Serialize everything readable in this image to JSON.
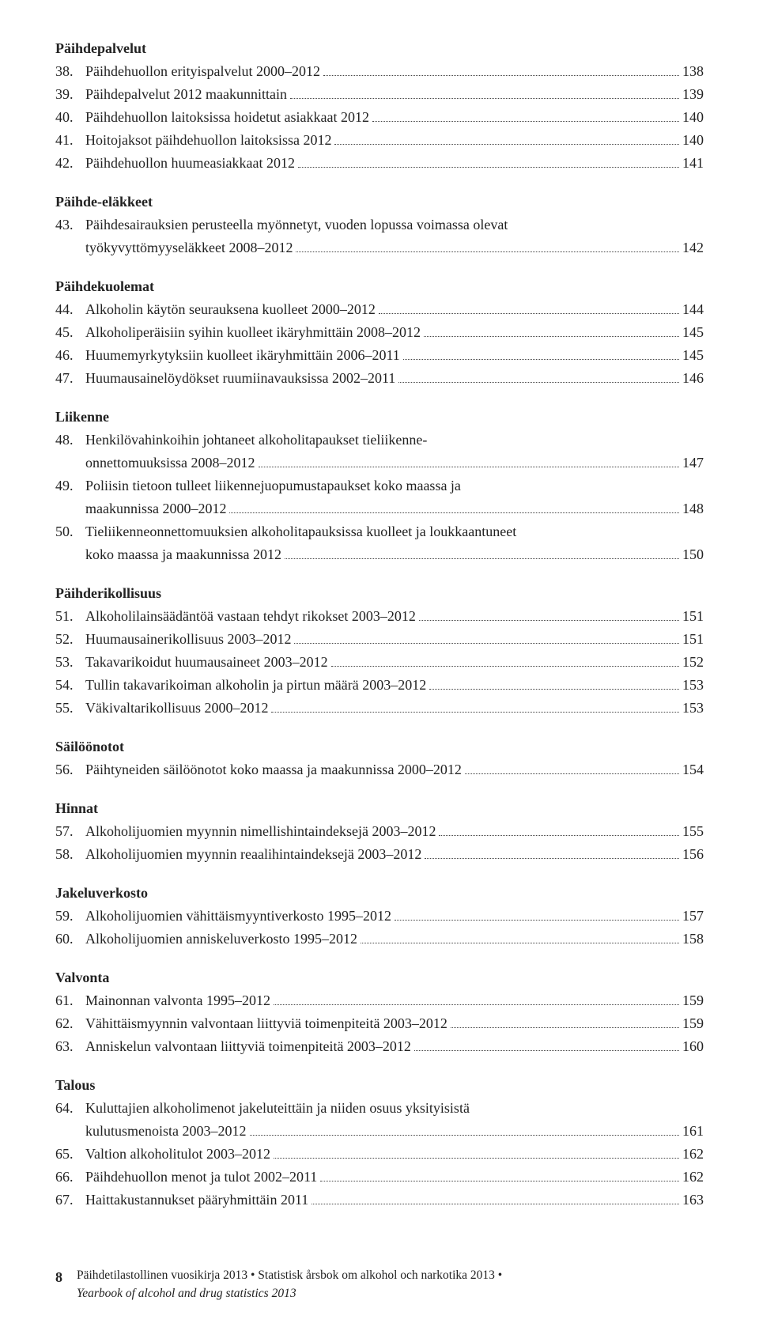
{
  "sections": [
    {
      "heading": "Päihdepalvelut",
      "first": true,
      "items": [
        {
          "num": "38.",
          "title": "Päihdehuollon erityispalvelut 2000–2012",
          "page": "138"
        },
        {
          "num": "39.",
          "title": "Päihdepalvelut 2012 maakunnittain",
          "page": "139"
        },
        {
          "num": "40.",
          "title": "Päihdehuollon laitoksissa hoidetut asiakkaat 2012",
          "page": "140"
        },
        {
          "num": "41.",
          "title": "Hoitojaksot päihdehuollon laitoksissa 2012",
          "page": "140"
        },
        {
          "num": "42.",
          "title": "Päihdehuollon huumeasiakkaat 2012",
          "page": "141"
        }
      ]
    },
    {
      "heading": "Päihde-eläkkeet",
      "items": [
        {
          "num": "43.",
          "title": "Päihdesairauksien perusteella myönnetyt, vuoden lopussa voimassa olevat",
          "cont": "työkyvyttömyyseläkkeet 2008–2012",
          "page": "142"
        }
      ]
    },
    {
      "heading": "Päihdekuolemat",
      "items": [
        {
          "num": "44.",
          "title": "Alkoholin käytön seurauksena kuolleet 2000–2012",
          "page": "144"
        },
        {
          "num": "45.",
          "title": "Alkoholiperäisiin syihin kuolleet ikäryhmittäin 2008–2012",
          "page": "145"
        },
        {
          "num": "46.",
          "title": "Huumemyrkytyksiin kuolleet ikäryhmittäin 2006–2011",
          "page": "145"
        },
        {
          "num": "47.",
          "title": "Huumausainelöydökset ruumiinavauksissa 2002–2011",
          "page": "146"
        }
      ]
    },
    {
      "heading": "Liikenne",
      "items": [
        {
          "num": "48.",
          "title": "Henkilövahinkoihin johtaneet alkoholitapaukset tieliikenne-",
          "cont": "onnettomuuksissa 2008–2012",
          "page": "147"
        },
        {
          "num": "49.",
          "title": "Poliisin tietoon tulleet liikennejuopumustapaukset koko maassa ja",
          "cont": "maakunnissa 2000–2012",
          "page": "148"
        },
        {
          "num": "50.",
          "title": "Tieliikenneonnettomuuksien alkoholitapauksissa kuolleet ja loukkaantuneet",
          "cont": "koko maassa ja maakunnissa 2012",
          "page": "150"
        }
      ]
    },
    {
      "heading": "Päihderikollisuus",
      "items": [
        {
          "num": "51.",
          "title": "Alkoholilainsäädäntöä vastaan tehdyt rikokset 2003–2012",
          "page": "151"
        },
        {
          "num": "52.",
          "title": "Huumausainerikollisuus 2003–2012",
          "page": "151"
        },
        {
          "num": "53.",
          "title": "Takavarikoidut huumausaineet 2003–2012",
          "page": "152"
        },
        {
          "num": "54.",
          "title": "Tullin takavarikoiman alkoholin ja pirtun määrä 2003–2012",
          "page": "153"
        },
        {
          "num": "55.",
          "title": "Väkivaltarikollisuus 2000–2012",
          "page": "153"
        }
      ]
    },
    {
      "heading": "Säilöönotot",
      "items": [
        {
          "num": "56.",
          "title": "Päihtyneiden säilöönotot koko maassa ja maakunnissa 2000–2012",
          "page": "154"
        }
      ]
    },
    {
      "heading": "Hinnat",
      "items": [
        {
          "num": "57.",
          "title": "Alkoholijuomien myynnin nimellishintaindeksejä 2003–2012",
          "page": "155"
        },
        {
          "num": "58.",
          "title": "Alkoholijuomien myynnin reaalihintaindeksejä 2003–2012",
          "page": "156"
        }
      ]
    },
    {
      "heading": "Jakeluverkosto",
      "items": [
        {
          "num": "59.",
          "title": "Alkoholijuomien vähittäismyyntiverkosto 1995–2012",
          "page": "157"
        },
        {
          "num": "60.",
          "title": "Alkoholijuomien anniskeluverkosto 1995–2012",
          "page": "158"
        }
      ]
    },
    {
      "heading": "Valvonta",
      "items": [
        {
          "num": "61.",
          "title": "Mainonnan valvonta 1995–2012",
          "page": "159"
        },
        {
          "num": "62.",
          "title": "Vähittäismyynnin valvontaan liittyviä toimenpiteitä 2003–2012",
          "page": "159"
        },
        {
          "num": "63.",
          "title": "Anniskelun valvontaan liittyviä toimenpiteitä 2003–2012",
          "page": "160"
        }
      ]
    },
    {
      "heading": "Talous",
      "items": [
        {
          "num": "64.",
          "title": "Kuluttajien alkoholimenot jakeluteittäin ja niiden osuus yksityisistä",
          "cont": "kulutusmenoista 2003–2012",
          "page": "161"
        },
        {
          "num": "65.",
          "title": "Valtion alkoholitulot 2003–2012",
          "page": "162"
        },
        {
          "num": "66.",
          "title": "Päihdehuollon menot ja tulot 2002–2011",
          "page": "162"
        },
        {
          "num": "67.",
          "title": "Haittakustannukset pääryhmittäin 2011",
          "page": "163"
        }
      ]
    }
  ],
  "footer": {
    "pagenum": "8",
    "line1": "Päihdetilastollinen vuosikirja 2013  •  Statistisk årsbok om alkohol och narkotika 2013  •",
    "line2": "Yearbook of alcohol and drug statistics 2013"
  }
}
